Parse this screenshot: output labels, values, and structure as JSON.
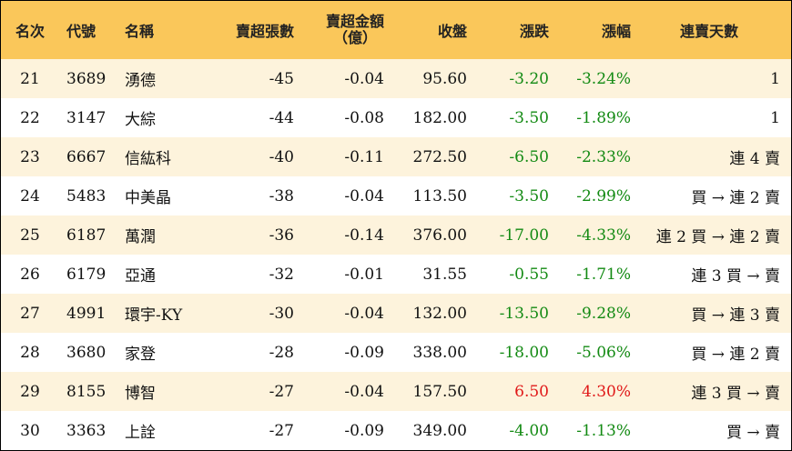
{
  "table": {
    "headers": {
      "rank": "名次",
      "code": "代號",
      "name": "名稱",
      "sell_shares": "賣超張數",
      "sell_amount_line1": "賣超金額",
      "sell_amount_line2": "（億）",
      "close": "收盤",
      "change": "漲跌",
      "change_pct": "漲幅",
      "streak": "連賣天數"
    },
    "rows": [
      {
        "rank": "21",
        "code": "3689",
        "name": "湧德",
        "sell_shares": "-45",
        "sell_amount": "-0.04",
        "close": "95.60",
        "change": "-3.20",
        "change_pct": "-3.24%",
        "streak": "1",
        "dir": "down"
      },
      {
        "rank": "22",
        "code": "3147",
        "name": "大綜",
        "sell_shares": "-44",
        "sell_amount": "-0.08",
        "close": "182.00",
        "change": "-3.50",
        "change_pct": "-1.89%",
        "streak": "1",
        "dir": "down"
      },
      {
        "rank": "23",
        "code": "6667",
        "name": "信紘科",
        "sell_shares": "-40",
        "sell_amount": "-0.11",
        "close": "272.50",
        "change": "-6.50",
        "change_pct": "-2.33%",
        "streak": "連 4 賣",
        "dir": "down"
      },
      {
        "rank": "24",
        "code": "5483",
        "name": "中美晶",
        "sell_shares": "-38",
        "sell_amount": "-0.04",
        "close": "113.50",
        "change": "-3.50",
        "change_pct": "-2.99%",
        "streak": "買 → 連 2 賣",
        "dir": "down"
      },
      {
        "rank": "25",
        "code": "6187",
        "name": "萬潤",
        "sell_shares": "-36",
        "sell_amount": "-0.14",
        "close": "376.00",
        "change": "-17.00",
        "change_pct": "-4.33%",
        "streak": "連 2 買 → 連 2 賣",
        "dir": "down"
      },
      {
        "rank": "26",
        "code": "6179",
        "name": "亞通",
        "sell_shares": "-32",
        "sell_amount": "-0.01",
        "close": "31.55",
        "change": "-0.55",
        "change_pct": "-1.71%",
        "streak": "連 3 買 → 賣",
        "dir": "down"
      },
      {
        "rank": "27",
        "code": "4991",
        "name": "環宇-KY",
        "sell_shares": "-30",
        "sell_amount": "-0.04",
        "close": "132.00",
        "change": "-13.50",
        "change_pct": "-9.28%",
        "streak": "買 → 連 3 賣",
        "dir": "down"
      },
      {
        "rank": "28",
        "code": "3680",
        "name": "家登",
        "sell_shares": "-28",
        "sell_amount": "-0.09",
        "close": "338.00",
        "change": "-18.00",
        "change_pct": "-5.06%",
        "streak": "買 → 連 2 賣",
        "dir": "down"
      },
      {
        "rank": "29",
        "code": "8155",
        "name": "博智",
        "sell_shares": "-27",
        "sell_amount": "-0.04",
        "close": "157.50",
        "change": "6.50",
        "change_pct": "4.30%",
        "streak": "連 3 買 → 賣",
        "dir": "up"
      },
      {
        "rank": "30",
        "code": "3363",
        "name": "上詮",
        "sell_shares": "-27",
        "sell_amount": "-0.09",
        "close": "349.00",
        "change": "-4.00",
        "change_pct": "-1.13%",
        "streak": "買 → 賣",
        "dir": "down"
      }
    ],
    "colors": {
      "header_bg": "#fac75a",
      "row_alt_bg": "#fdf3dc",
      "up": "#e01818",
      "down": "#138a13"
    }
  }
}
